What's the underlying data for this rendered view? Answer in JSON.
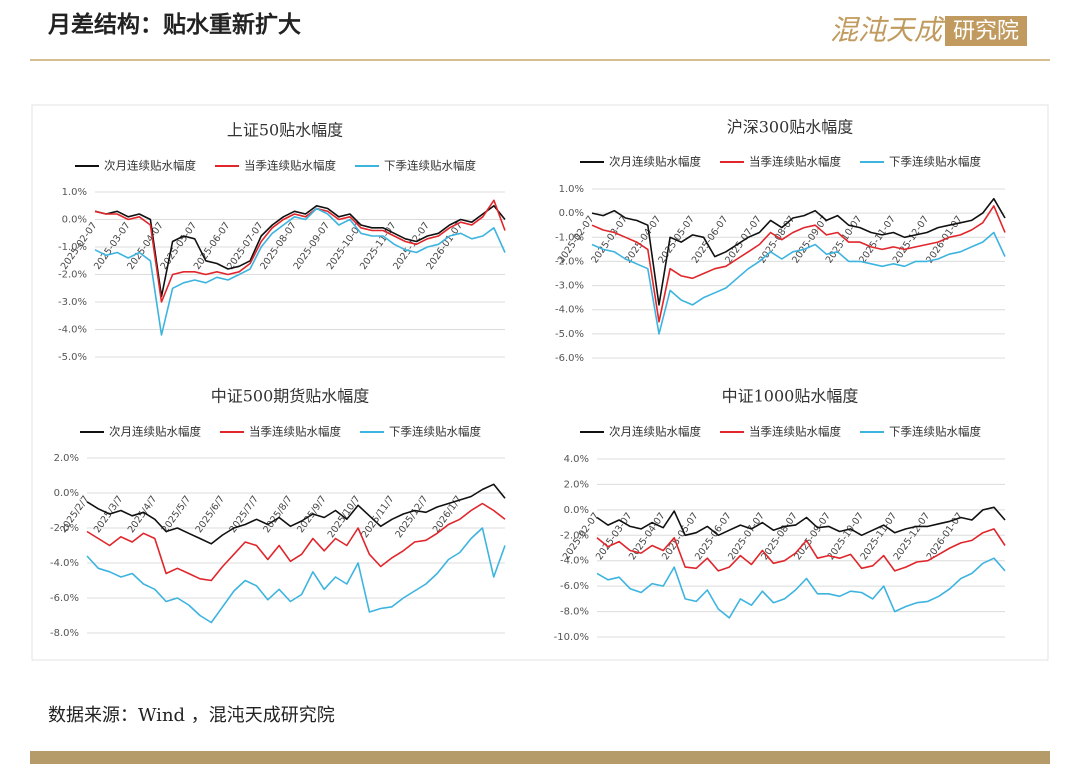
{
  "header": {
    "title": "月差结构：贴水重新扩大",
    "logo": "混沌天成",
    "logo_sub": "研究院"
  },
  "source": "数据来源：Wind ，混沌天成研究院",
  "chart_data": [
    {
      "type": "line",
      "title": "上证50贴水幅度",
      "categories": [
        "2025-02-07",
        null,
        null,
        "2025-03-07",
        null,
        null,
        "2025-04-07",
        null,
        null,
        "2025-05-07",
        null,
        null,
        "2025-06-07",
        null,
        null,
        "2025-07-07",
        null,
        null,
        "2025-08-07",
        null,
        null,
        "2025-09-07",
        null,
        null,
        "2025-10-07",
        null,
        null,
        "2025-11-07",
        null,
        null,
        "2025-12-07",
        null,
        null,
        "2026-01-07",
        null,
        null,
        null,
        null
      ],
      "series": [
        {
          "name": "次月连续贴水幅度",
          "color": "#111111",
          "values": [
            0.3,
            0.2,
            0.3,
            0.1,
            0.2,
            0.0,
            -2.8,
            -0.8,
            -0.6,
            -0.7,
            -1.5,
            -1.6,
            -1.8,
            -1.7,
            -1.5,
            -0.6,
            -0.2,
            0.1,
            0.3,
            0.2,
            0.5,
            0.4,
            0.1,
            0.2,
            -0.2,
            -0.3,
            -0.3,
            -0.5,
            -0.7,
            -0.8,
            -0.6,
            -0.5,
            -0.2,
            0.0,
            -0.1,
            0.2,
            0.5,
            0.0
          ]
        },
        {
          "name": "当季连续贴水幅度",
          "color": "#e0262b",
          "values": [
            0.3,
            0.2,
            0.2,
            0.0,
            0.1,
            -0.2,
            -3.0,
            -2.0,
            -1.9,
            -1.9,
            -2.0,
            -1.9,
            -2.0,
            -1.9,
            -1.6,
            -0.8,
            -0.3,
            0.0,
            0.2,
            0.1,
            0.4,
            0.3,
            0.0,
            0.1,
            -0.3,
            -0.4,
            -0.4,
            -0.6,
            -0.8,
            -0.9,
            -0.7,
            -0.6,
            -0.3,
            -0.1,
            -0.2,
            0.1,
            0.7,
            -0.4
          ]
        },
        {
          "name": "下季连续贴水幅度",
          "color": "#3db4e0",
          "values": [
            -1.1,
            -1.3,
            -1.2,
            -1.4,
            -1.2,
            -1.5,
            -4.2,
            -2.5,
            -2.3,
            -2.2,
            -2.3,
            -2.1,
            -2.2,
            -2.0,
            -1.8,
            -1.0,
            -0.5,
            -0.2,
            0.1,
            0.0,
            0.4,
            0.2,
            -0.2,
            0.0,
            -0.5,
            -0.6,
            -0.6,
            -0.9,
            -1.1,
            -1.2,
            -1.0,
            -0.9,
            -0.6,
            -0.5,
            -0.7,
            -0.6,
            -0.3,
            -1.2
          ]
        }
      ],
      "ylim": [
        -5,
        1
      ],
      "yticks": [
        {
          "value": 1,
          "label": "1.0%"
        },
        {
          "value": 0,
          "label": "0.0%"
        },
        {
          "value": -1,
          "label": "-1.0%"
        },
        {
          "value": -2,
          "label": "-2.0%"
        },
        {
          "value": -3,
          "label": "-3.0%"
        },
        {
          "value": -4,
          "label": "-4.0%"
        },
        {
          "value": -5,
          "label": "-5.0%"
        }
      ],
      "grid": true
    },
    {
      "type": "line",
      "title": "沪深300贴水幅度",
      "categories": [
        "2025-02-07",
        null,
        null,
        "2025-03-07",
        null,
        null,
        "2025-04-07",
        null,
        null,
        "2025-05-07",
        null,
        null,
        "2025-06-07",
        null,
        null,
        "2025-07-07",
        null,
        null,
        "2025-08-07",
        null,
        null,
        "2025-09-07",
        null,
        null,
        "2025-10-07",
        null,
        null,
        "2025-11-07",
        null,
        null,
        "2025-12-07",
        null,
        null,
        "2026-01-07",
        null,
        null,
        null,
        null
      ],
      "series": [
        {
          "name": "次月连续贴水幅度",
          "color": "#111111",
          "values": [
            0.0,
            -0.1,
            0.1,
            -0.2,
            -0.3,
            -0.5,
            -3.8,
            -1.0,
            -1.2,
            -0.9,
            -1.0,
            -1.8,
            -1.6,
            -1.3,
            -1.0,
            -0.8,
            -0.3,
            -0.6,
            -0.2,
            -0.1,
            0.1,
            -0.3,
            -0.1,
            -0.5,
            -0.6,
            -0.8,
            -0.9,
            -0.8,
            -1.0,
            -0.9,
            -0.8,
            -0.6,
            -0.5,
            -0.4,
            -0.3,
            0.0,
            0.6,
            -0.2
          ]
        },
        {
          "name": "当季连续贴水幅度",
          "color": "#e0262b",
          "values": [
            -0.5,
            -0.7,
            -0.8,
            -1.0,
            -1.2,
            -1.5,
            -4.5,
            -2.3,
            -2.6,
            -2.7,
            -2.5,
            -2.3,
            -2.2,
            -1.9,
            -1.6,
            -1.3,
            -0.8,
            -1.1,
            -0.8,
            -0.6,
            -0.5,
            -0.9,
            -0.8,
            -1.2,
            -1.2,
            -1.4,
            -1.5,
            -1.4,
            -1.5,
            -1.4,
            -1.3,
            -1.2,
            -1.0,
            -0.9,
            -0.7,
            -0.4,
            0.3,
            -0.8
          ]
        },
        {
          "name": "下季连续贴水幅度",
          "color": "#3db4e0",
          "values": [
            -1.3,
            -1.5,
            -1.6,
            -1.9,
            -2.1,
            -2.3,
            -5.0,
            -3.2,
            -3.6,
            -3.8,
            -3.5,
            -3.3,
            -3.1,
            -2.7,
            -2.3,
            -2.0,
            -1.6,
            -1.9,
            -1.6,
            -1.5,
            -1.3,
            -1.7,
            -1.6,
            -2.0,
            -2.0,
            -2.1,
            -2.2,
            -2.1,
            -2.2,
            -2.0,
            -2.0,
            -1.9,
            -1.7,
            -1.6,
            -1.4,
            -1.2,
            -0.8,
            -1.8
          ]
        }
      ],
      "ylim": [
        -6,
        1
      ],
      "yticks": [
        {
          "value": 1,
          "label": "1.0%"
        },
        {
          "value": 0,
          "label": "0.0%"
        },
        {
          "value": -1,
          "label": "-1.0%"
        },
        {
          "value": -2,
          "label": "-2.0%"
        },
        {
          "value": -3,
          "label": "-3.0%"
        },
        {
          "value": -4,
          "label": "-4.0%"
        },
        {
          "value": -5,
          "label": "-5.0%"
        },
        {
          "value": -6,
          "label": "-6.0%"
        }
      ],
      "grid": true
    },
    {
      "type": "line",
      "title": "中证500期货贴水幅度",
      "categories": [
        "2025/2/7",
        null,
        null,
        "2025/3/7",
        null,
        null,
        "2025/4/7",
        null,
        null,
        "2025/5/7",
        null,
        null,
        "2025/6/7",
        null,
        null,
        "2025/7/7",
        null,
        null,
        "2025/8/7",
        null,
        null,
        "2025/9/7",
        null,
        null,
        "2025/10/7",
        null,
        null,
        "2025/11/7",
        null,
        null,
        "2025/12/7",
        null,
        null,
        "2026/1/7",
        null,
        null,
        null,
        null
      ],
      "series": [
        {
          "name": "次月连续贴水幅度",
          "color": "#111111",
          "values": [
            -0.5,
            -0.9,
            -1.2,
            -1.0,
            -1.3,
            -1.1,
            -1.5,
            -2.2,
            -2.0,
            -2.3,
            -2.6,
            -2.9,
            -2.4,
            -2.0,
            -1.8,
            -1.5,
            -1.8,
            -1.4,
            -1.9,
            -1.6,
            -1.2,
            -1.4,
            -1.0,
            -1.5,
            -0.7,
            -1.3,
            -1.9,
            -1.5,
            -1.2,
            -1.0,
            -1.1,
            -0.8,
            -0.6,
            -0.4,
            -0.2,
            0.2,
            0.5,
            -0.3
          ]
        },
        {
          "name": "当季连续贴水幅度",
          "color": "#e0262b",
          "values": [
            -2.2,
            -2.6,
            -3.0,
            -2.5,
            -2.8,
            -2.3,
            -2.6,
            -4.6,
            -4.3,
            -4.6,
            -4.9,
            -5.0,
            -4.2,
            -3.5,
            -2.8,
            -3.0,
            -3.8,
            -3.0,
            -3.9,
            -3.5,
            -2.6,
            -3.3,
            -2.6,
            -3.0,
            -2.0,
            -3.5,
            -4.2,
            -3.7,
            -3.3,
            -2.8,
            -2.7,
            -2.3,
            -1.8,
            -1.5,
            -1.0,
            -0.6,
            -1.0,
            -1.5
          ]
        },
        {
          "name": "下季连续贴水幅度",
          "color": "#3db4e0",
          "values": [
            -3.6,
            -4.3,
            -4.5,
            -4.8,
            -4.6,
            -5.2,
            -5.5,
            -6.2,
            -6.0,
            -6.4,
            -7.0,
            -7.4,
            -6.5,
            -5.6,
            -5.0,
            -5.3,
            -6.1,
            -5.5,
            -6.2,
            -5.8,
            -4.5,
            -5.5,
            -4.8,
            -5.2,
            -4.0,
            -6.8,
            -6.6,
            -6.5,
            -6.0,
            -5.6,
            -5.2,
            -4.6,
            -3.8,
            -3.4,
            -2.6,
            -2.0,
            -4.8,
            -3.0
          ]
        }
      ],
      "ylim": [
        -8,
        2
      ],
      "yticks": [
        {
          "value": 2,
          "label": "2.0%"
        },
        {
          "value": 0,
          "label": "0.0%"
        },
        {
          "value": -2,
          "label": "-2.0%"
        },
        {
          "value": -4,
          "label": "-4.0%"
        },
        {
          "value": -6,
          "label": "-6.0%"
        },
        {
          "value": -8,
          "label": "-8.0%"
        }
      ],
      "grid": true
    },
    {
      "type": "line",
      "title": "中证1000贴水幅度",
      "categories": [
        "2025-02-07",
        null,
        null,
        "2025-03-07",
        null,
        null,
        "2025-04-07",
        null,
        null,
        "2025-05-07",
        null,
        null,
        "2025-06-07",
        null,
        null,
        "2025-07-07",
        null,
        null,
        "2025-08-07",
        null,
        null,
        "2025-09-07",
        null,
        null,
        "2025-10-07",
        null,
        null,
        "2025-11-07",
        null,
        null,
        "2025-12-07",
        null,
        null,
        "2026-01-07",
        null,
        null,
        null,
        null
      ],
      "series": [
        {
          "name": "次月连续贴水幅度",
          "color": "#111111",
          "values": [
            -0.6,
            -1.2,
            -0.8,
            -1.3,
            -1.5,
            -1.0,
            -1.4,
            -0.1,
            -2.0,
            -1.8,
            -1.3,
            -2.0,
            -1.6,
            -1.2,
            -1.5,
            -1.0,
            -1.6,
            -1.3,
            -1.2,
            -0.6,
            -1.4,
            -1.3,
            -1.7,
            -1.5,
            -2.0,
            -1.6,
            -1.2,
            -1.8,
            -1.5,
            -1.3,
            -1.3,
            -1.1,
            -0.9,
            -0.6,
            -0.8,
            0.0,
            0.2,
            -0.8
          ]
        },
        {
          "name": "当季连续贴水幅度",
          "color": "#e0262b",
          "values": [
            -2.2,
            -2.9,
            -2.5,
            -3.2,
            -3.4,
            -2.8,
            -3.2,
            -2.2,
            -4.5,
            -4.6,
            -3.8,
            -4.8,
            -4.5,
            -3.6,
            -4.3,
            -3.2,
            -4.2,
            -4.0,
            -3.4,
            -2.4,
            -3.8,
            -3.6,
            -3.8,
            -3.5,
            -4.6,
            -4.4,
            -3.6,
            -4.8,
            -4.5,
            -4.1,
            -4.0,
            -3.5,
            -3.0,
            -2.6,
            -2.4,
            -1.8,
            -1.5,
            -2.8
          ]
        },
        {
          "name": "下季连续贴水幅度",
          "color": "#3db4e0",
          "values": [
            -5.0,
            -5.5,
            -5.3,
            -6.2,
            -6.5,
            -5.8,
            -6.0,
            -4.5,
            -7.0,
            -7.2,
            -6.3,
            -7.8,
            -8.5,
            -7.0,
            -7.5,
            -6.4,
            -7.3,
            -7.0,
            -6.3,
            -5.4,
            -6.6,
            -6.6,
            -6.8,
            -6.4,
            -6.5,
            -7.0,
            -6.0,
            -8.0,
            -7.6,
            -7.3,
            -7.2,
            -6.8,
            -6.2,
            -5.4,
            -5.0,
            -4.2,
            -3.8,
            -4.8
          ]
        }
      ],
      "ylim": [
        -10,
        4
      ],
      "yticks": [
        {
          "value": 4,
          "label": "4.0%"
        },
        {
          "value": 2,
          "label": "2.0%"
        },
        {
          "value": 0,
          "label": "0.0%"
        },
        {
          "value": -2,
          "label": "-2.0%"
        },
        {
          "value": -4,
          "label": "-4.0%"
        },
        {
          "value": -6,
          "label": "-6.0%"
        },
        {
          "value": -8,
          "label": "-8.0%"
        },
        {
          "value": -10,
          "label": "-10.0%"
        }
      ],
      "grid": true
    }
  ]
}
